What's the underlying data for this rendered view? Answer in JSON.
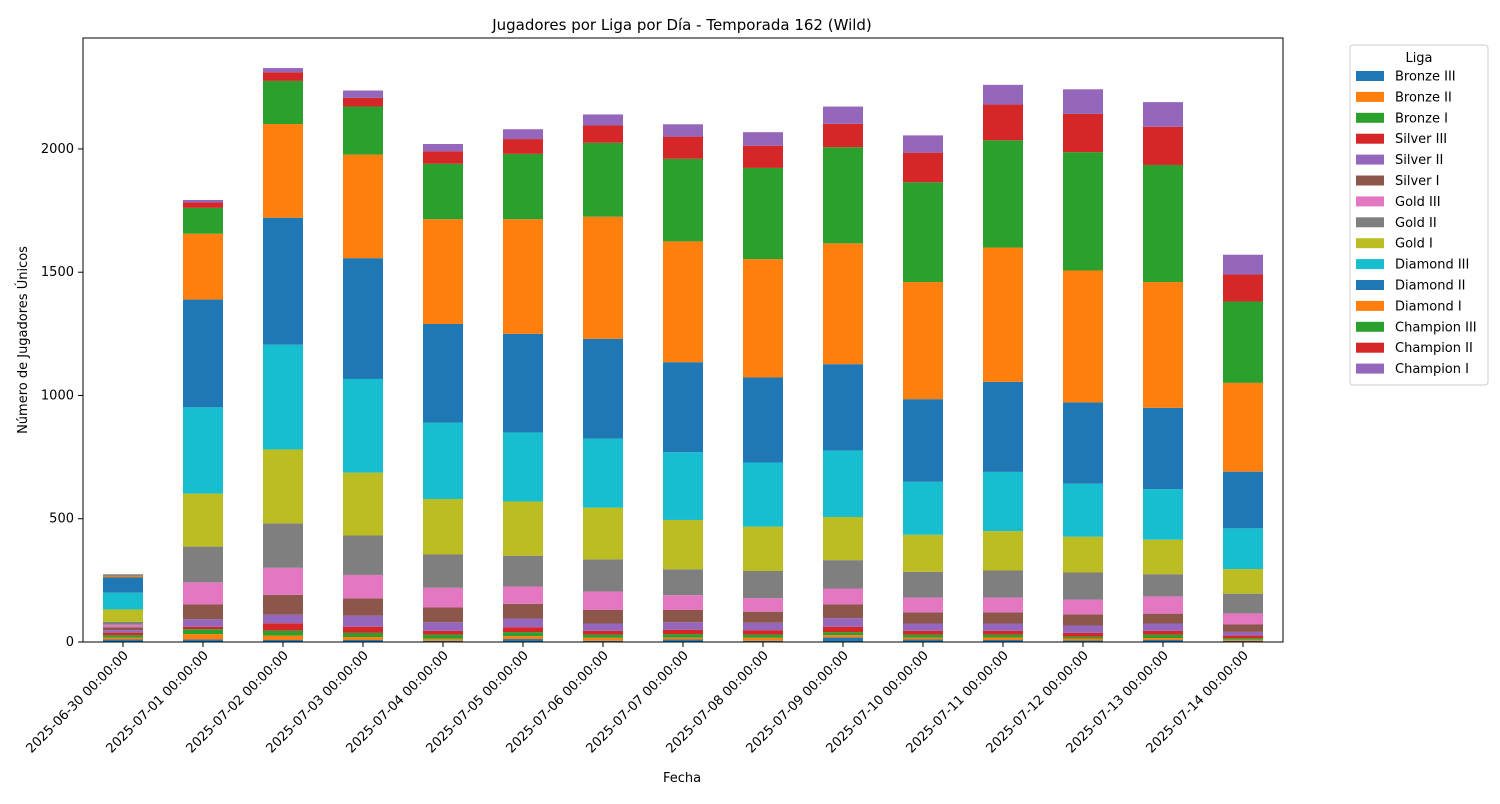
{
  "chart_data": {
    "type": "bar",
    "stacked": true,
    "title": "Jugadores por Liga por Día - Temporada 162 (Wild)",
    "xlabel": "Fecha",
    "ylabel": "Número de Jugadores Únicos",
    "ylim": [
      0,
      2450
    ],
    "yticks": [
      0,
      500,
      1000,
      1500,
      2000
    ],
    "legend_title": "Liga",
    "legend_position": "outside-right",
    "categories": [
      "2025-06-30 00:00:00",
      "2025-07-01 00:00:00",
      "2025-07-02 00:00:00",
      "2025-07-03 00:00:00",
      "2025-07-04 00:00:00",
      "2025-07-05 00:00:00",
      "2025-07-06 00:00:00",
      "2025-07-07 00:00:00",
      "2025-07-08 00:00:00",
      "2025-07-09 00:00:00",
      "2025-07-10 00:00:00",
      "2025-07-11 00:00:00",
      "2025-07-12 00:00:00",
      "2025-07-13 00:00:00",
      "2025-07-14 00:00:00"
    ],
    "series": [
      {
        "name": "Bronze III",
        "color": "#1f77b4",
        "values": [
          10,
          10,
          8,
          8,
          5,
          12,
          5,
          10,
          5,
          18,
          10,
          8,
          6,
          8,
          5
        ]
      },
      {
        "name": "Bronze II",
        "color": "#ff7f0e",
        "values": [
          8,
          22,
          18,
          12,
          8,
          12,
          12,
          8,
          12,
          10,
          8,
          10,
          8,
          8,
          5
        ]
      },
      {
        "name": "Bronze I",
        "color": "#2ca02c",
        "values": [
          10,
          20,
          20,
          17,
          17,
          16,
          13,
          14,
          13,
          12,
          12,
          12,
          8,
          14,
          6
        ]
      },
      {
        "name": "Silver III",
        "color": "#d62728",
        "values": [
          10,
          10,
          30,
          25,
          15,
          20,
          15,
          18,
          18,
          22,
          15,
          15,
          15,
          15,
          10
        ]
      },
      {
        "name": "Silver II",
        "color": "#9467bd",
        "values": [
          10,
          30,
          35,
          45,
          35,
          35,
          30,
          30,
          30,
          35,
          30,
          30,
          30,
          30,
          15
        ]
      },
      {
        "name": "Silver I",
        "color": "#8c564b",
        "values": [
          12,
          60,
          80,
          70,
          60,
          60,
          55,
          50,
          45,
          55,
          45,
          45,
          45,
          40,
          30
        ]
      },
      {
        "name": "Gold III",
        "color": "#e377c2",
        "values": [
          10,
          90,
          110,
          95,
          80,
          70,
          75,
          60,
          55,
          65,
          60,
          60,
          60,
          70,
          45
        ]
      },
      {
        "name": "Gold II",
        "color": "#7f7f7f",
        "values": [
          12,
          145,
          180,
          160,
          135,
          125,
          130,
          105,
          110,
          115,
          105,
          110,
          110,
          90,
          80
        ]
      },
      {
        "name": "Gold I",
        "color": "#bcbd22",
        "values": [
          50,
          215,
          300,
          255,
          225,
          220,
          210,
          200,
          180,
          175,
          150,
          160,
          145,
          140,
          100
        ]
      },
      {
        "name": "Diamond III",
        "color": "#17becf",
        "values": [
          68,
          350,
          425,
          380,
          310,
          280,
          280,
          275,
          260,
          270,
          215,
          240,
          215,
          205,
          165
        ]
      },
      {
        "name": "Diamond II",
        "color": "#1f77b4",
        "values": [
          63,
          437,
          515,
          490,
          400,
          400,
          405,
          365,
          345,
          350,
          335,
          365,
          330,
          330,
          230
        ]
      },
      {
        "name": "Diamond I",
        "color": "#ff7f0e",
        "values": [
          5,
          267,
          380,
          420,
          425,
          465,
          495,
          490,
          480,
          490,
          475,
          545,
          535,
          510,
          360
        ]
      },
      {
        "name": "Champion III",
        "color": "#2ca02c",
        "values": [
          3,
          105,
          175,
          195,
          225,
          265,
          300,
          335,
          370,
          390,
          405,
          435,
          480,
          475,
          330
        ]
      },
      {
        "name": "Champion II",
        "color": "#d62728",
        "values": [
          2,
          22,
          35,
          35,
          50,
          60,
          70,
          90,
          90,
          95,
          120,
          145,
          155,
          155,
          110
        ]
      },
      {
        "name": "Champion I",
        "color": "#9467bd",
        "values": [
          2,
          10,
          17,
          30,
          30,
          40,
          45,
          50,
          55,
          70,
          70,
          80,
          100,
          100,
          80
        ]
      }
    ]
  }
}
